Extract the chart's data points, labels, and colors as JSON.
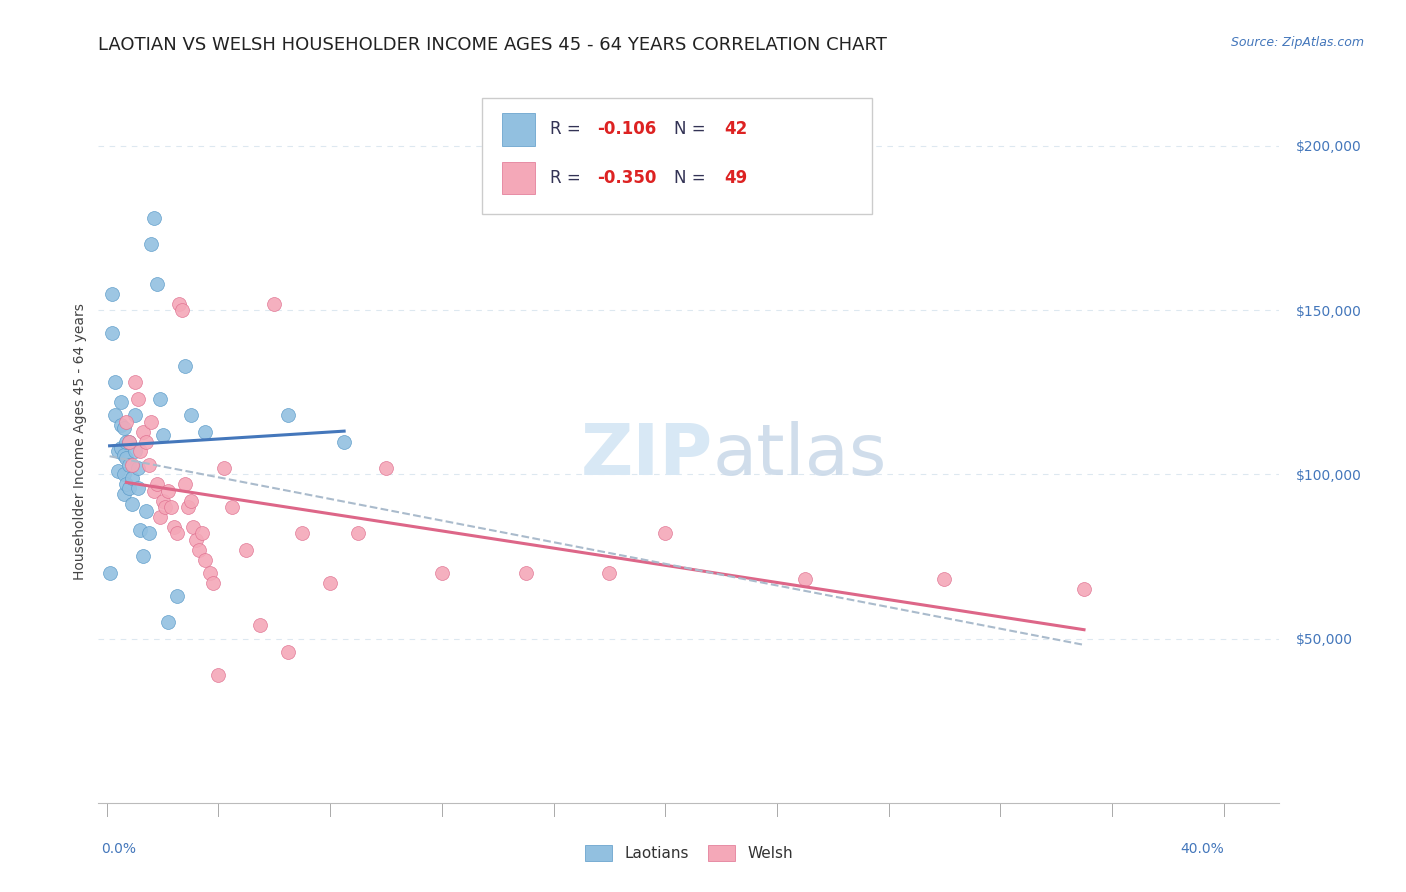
{
  "title": "LAOTIAN VS WELSH HOUSEHOLDER INCOME AGES 45 - 64 YEARS CORRELATION CHART",
  "source": "Source: ZipAtlas.com",
  "ylabel": "Householder Income Ages 45 - 64 years",
  "ytick_values": [
    50000,
    100000,
    150000,
    200000
  ],
  "ylim": [
    0,
    220000
  ],
  "xlim": [
    -0.003,
    0.42
  ],
  "legend_blue_r_val": "-0.106",
  "legend_blue_n_val": "42",
  "legend_pink_r_val": "-0.350",
  "legend_pink_n_val": "49",
  "blue_color": "#92c0e0",
  "pink_color": "#f4a8b8",
  "blue_edge_color": "#5a9ac8",
  "pink_edge_color": "#e07090",
  "blue_line_color": "#4477bb",
  "pink_line_color": "#dd6688",
  "dashed_line_color": "#aabbcc",
  "watermark_color": "#d8e8f5",
  "grid_color": "#dde8f0",
  "background_color": "#ffffff",
  "title_color": "#222222",
  "source_color": "#4477bb",
  "ytick_color": "#4477bb",
  "xtick_color": "#4477bb",
  "legend_text_dark": "#333355",
  "legend_val_color": "#dd2222",
  "laotians_x": [
    0.001,
    0.002,
    0.002,
    0.003,
    0.003,
    0.004,
    0.004,
    0.005,
    0.005,
    0.005,
    0.006,
    0.006,
    0.006,
    0.006,
    0.007,
    0.007,
    0.007,
    0.008,
    0.008,
    0.008,
    0.009,
    0.009,
    0.01,
    0.01,
    0.011,
    0.011,
    0.012,
    0.013,
    0.014,
    0.015,
    0.016,
    0.017,
    0.018,
    0.019,
    0.02,
    0.022,
    0.025,
    0.028,
    0.03,
    0.035,
    0.065,
    0.085
  ],
  "laotians_y": [
    70000,
    155000,
    143000,
    128000,
    118000,
    107000,
    101000,
    122000,
    115000,
    108000,
    114000,
    106000,
    100000,
    94000,
    110000,
    105000,
    97000,
    110000,
    103000,
    96000,
    99000,
    91000,
    118000,
    107000,
    102000,
    96000,
    83000,
    75000,
    89000,
    82000,
    170000,
    178000,
    158000,
    123000,
    112000,
    55000,
    63000,
    133000,
    118000,
    113000,
    118000,
    110000
  ],
  "welsh_x": [
    0.007,
    0.008,
    0.009,
    0.01,
    0.011,
    0.012,
    0.013,
    0.014,
    0.015,
    0.016,
    0.017,
    0.018,
    0.019,
    0.02,
    0.021,
    0.022,
    0.023,
    0.024,
    0.025,
    0.026,
    0.027,
    0.028,
    0.029,
    0.03,
    0.031,
    0.032,
    0.033,
    0.034,
    0.035,
    0.037,
    0.038,
    0.04,
    0.042,
    0.045,
    0.05,
    0.055,
    0.06,
    0.065,
    0.07,
    0.08,
    0.09,
    0.1,
    0.12,
    0.15,
    0.18,
    0.2,
    0.25,
    0.3,
    0.35
  ],
  "welsh_y": [
    116000,
    110000,
    103000,
    128000,
    123000,
    107000,
    113000,
    110000,
    103000,
    116000,
    95000,
    97000,
    87000,
    92000,
    90000,
    95000,
    90000,
    84000,
    82000,
    152000,
    150000,
    97000,
    90000,
    92000,
    84000,
    80000,
    77000,
    82000,
    74000,
    70000,
    67000,
    39000,
    102000,
    90000,
    77000,
    54000,
    152000,
    46000,
    82000,
    67000,
    82000,
    102000,
    70000,
    70000,
    70000,
    82000,
    68000,
    68000,
    65000
  ],
  "title_fontsize": 13,
  "axis_label_fontsize": 10,
  "tick_label_fontsize": 10,
  "legend_fontsize": 12,
  "marker_size": 100
}
